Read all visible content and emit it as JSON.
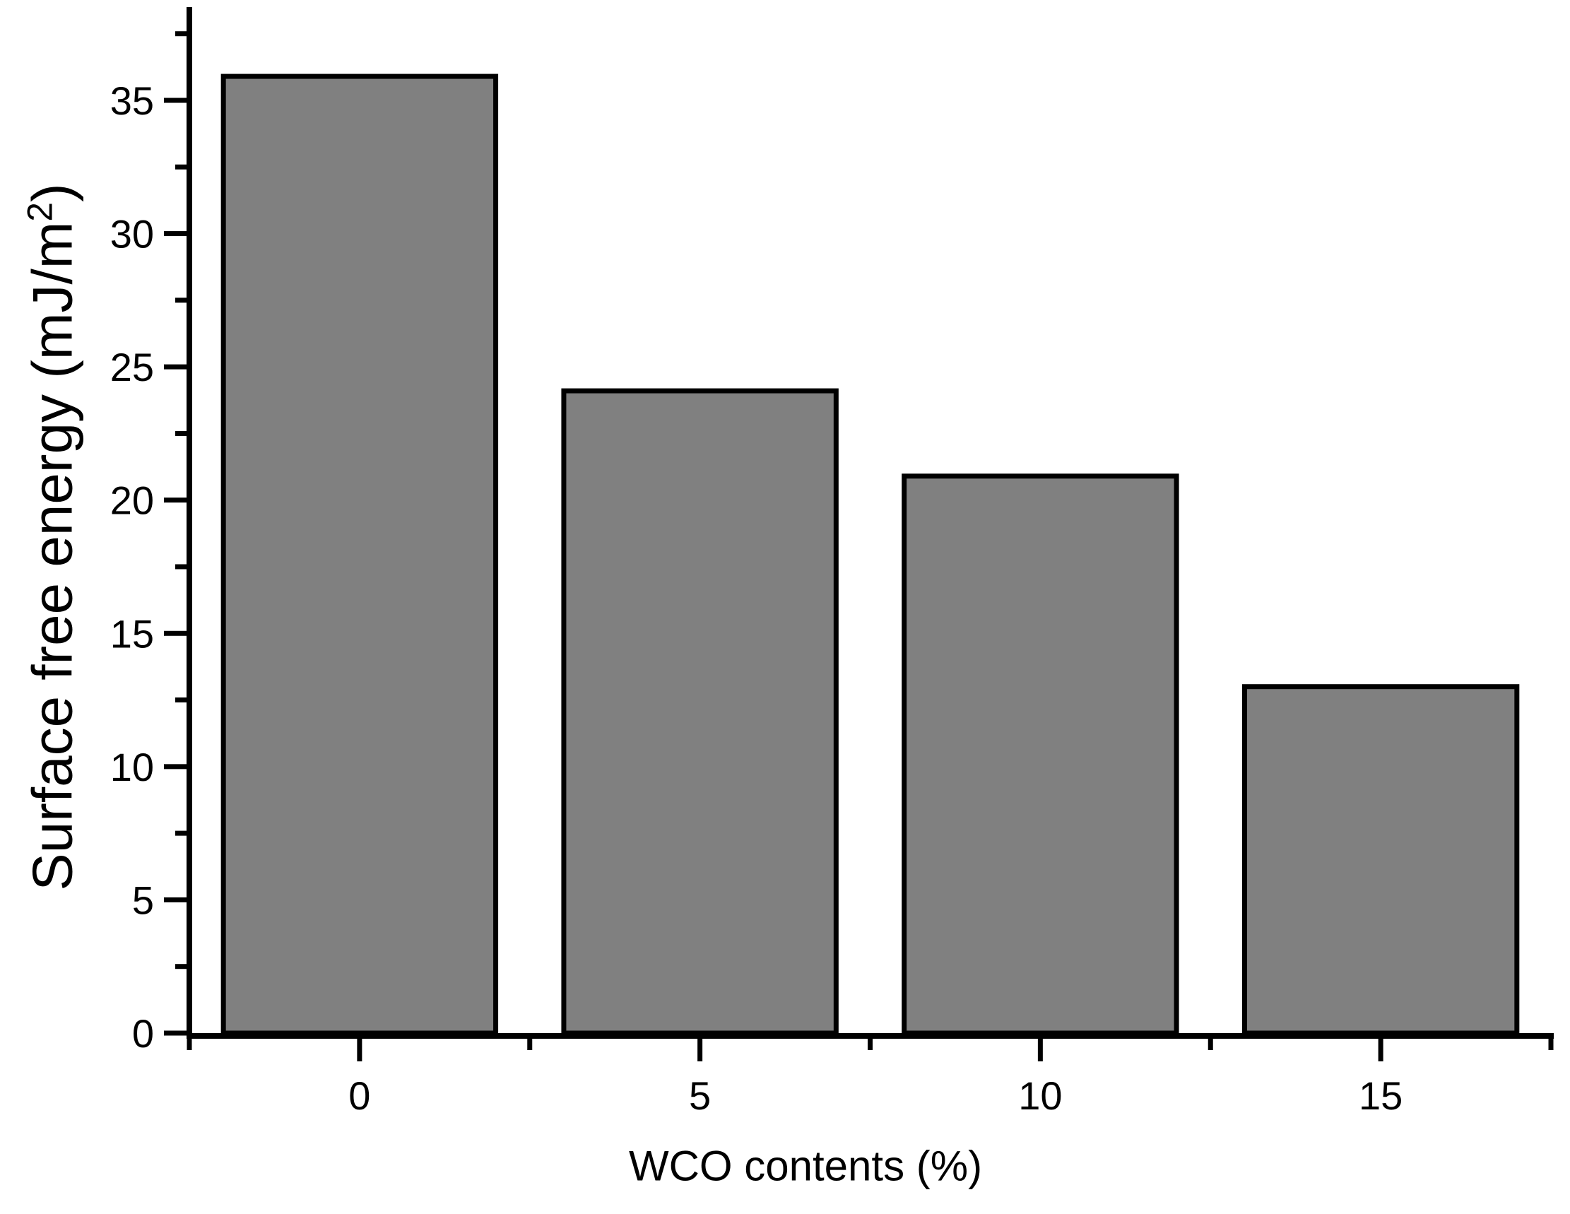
{
  "figure": {
    "background": "#ffffff"
  },
  "chart_data": {
    "type": "bar",
    "title": "",
    "xlabel": "WCO contents (%)",
    "ylabel": "Surface free energy (mJ/m2)",
    "ylabel_parts": {
      "prefix": "Surface free energy (mJ/m",
      "sup": "2",
      "suffix": ")"
    },
    "categories": [
      "0",
      "5",
      "10",
      "15"
    ],
    "x": [
      0,
      5,
      10,
      15
    ],
    "values": [
      35.9,
      24.1,
      20.9,
      13.0
    ],
    "series_name": "Surface free energy",
    "bar_width_units": 4,
    "bar_fill": "#808080",
    "bar_stroke": "#000000",
    "axis_color": "#000000",
    "text_color": "#000000",
    "xlim": [
      -2.5,
      17.5
    ],
    "ylim": [
      0,
      38.5
    ],
    "x_major_ticks": [
      0,
      5,
      10,
      15
    ],
    "x_minor_ticks": [
      -2.5,
      2.5,
      7.5,
      12.5,
      17.5
    ],
    "y_major_ticks": [
      0,
      5,
      10,
      15,
      20,
      25,
      30,
      35
    ],
    "y_minor_ticks": [
      2.5,
      7.5,
      12.5,
      17.5,
      22.5,
      27.5,
      32.5,
      37.5
    ],
    "grid": false,
    "legend": null
  }
}
